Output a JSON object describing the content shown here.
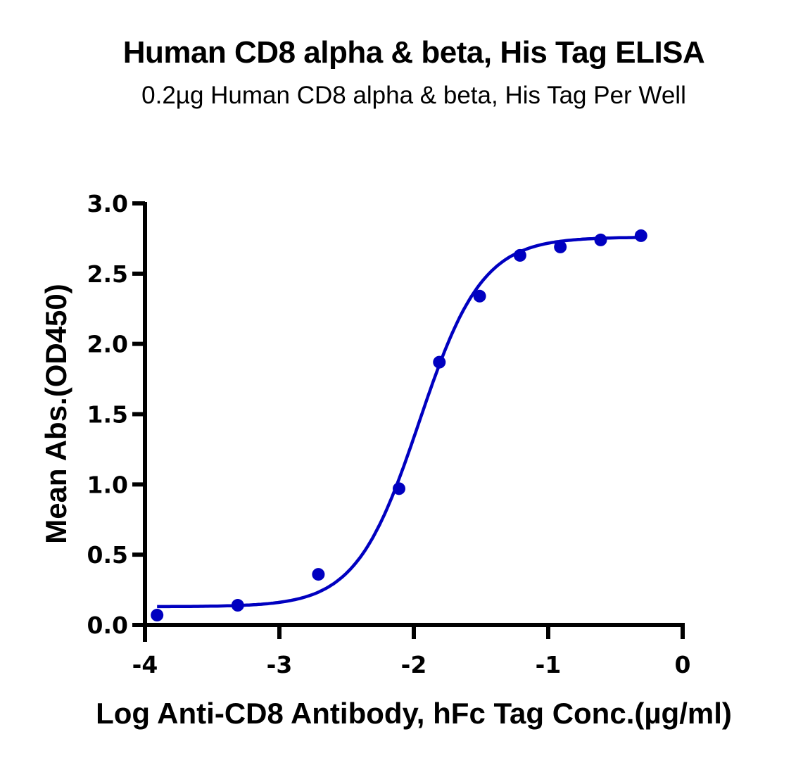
{
  "chart": {
    "title": "Human CD8 alpha & beta, His Tag ELISA",
    "subtitle": "0.2µg Human CD8 alpha & beta, His Tag Per Well",
    "xlabel": "Log Anti-CD8 Antibody, hFc Tag Conc.(µg/ml)",
    "ylabel": "Mean Abs.(OD450)",
    "series_color": "#0000c0"
  },
  "chart_data": {
    "type": "scatter",
    "title": "Human CD8 alpha & beta, His Tag ELISA",
    "subtitle": "0.2µg Human CD8 alpha & beta, His Tag Per Well",
    "xlabel": "Log Anti-CD8 Antibody, hFc Tag Conc.(µg/ml)",
    "ylabel": "Mean Abs.(OD450)",
    "xlim": [
      -4,
      0
    ],
    "ylim": [
      0,
      3.0
    ],
    "x_ticks": [
      -4,
      -3,
      -2,
      -1,
      0
    ],
    "x_tick_labels": [
      "-4",
      "-3",
      "-2",
      "-1",
      "0"
    ],
    "y_ticks": [
      0,
      0.5,
      1.0,
      1.5,
      2.0,
      2.5,
      3.0
    ],
    "y_tick_labels": [
      "0.0",
      "0.5",
      "1.0",
      "1.5",
      "2.0",
      "2.5",
      "3.0"
    ],
    "grid": false,
    "legend": null,
    "series": [
      {
        "name": "Human CD8 alpha & beta, His Tag",
        "color": "#0000c0",
        "marker": "circle",
        "x": [
          -3.91,
          -3.31,
          -2.71,
          -2.11,
          -1.81,
          -1.51,
          -1.21,
          -0.91,
          -0.61,
          -0.31
        ],
        "y": [
          0.07,
          0.14,
          0.36,
          0.97,
          1.87,
          2.34,
          2.63,
          2.69,
          2.74,
          2.77
        ]
      }
    ],
    "fit": {
      "type": "4PL sigmoid",
      "bottom": 0.13,
      "top": 2.76,
      "logEC50": -1.96,
      "hill": 1.85,
      "x_range": [
        -3.91,
        -0.31
      ]
    }
  }
}
